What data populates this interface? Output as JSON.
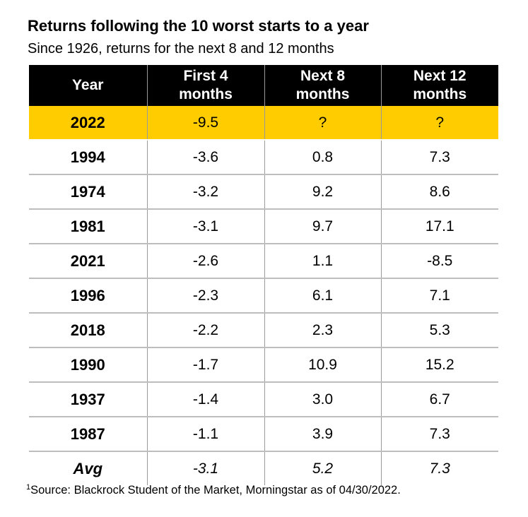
{
  "chart_data": {
    "type": "table",
    "title": "Returns following the 10 worst starts to a year",
    "subtitle": "Since 1926, returns for the next 8 and 12 months",
    "columns": [
      "Year",
      "First 4 months",
      "Next 8 months",
      "Next 12 months"
    ],
    "rows": [
      {
        "year": "2022",
        "first4": "-9.5",
        "next8": "?",
        "next12": "?"
      },
      {
        "year": "1994",
        "first4": "-3.6",
        "next8": "0.8",
        "next12": "7.3"
      },
      {
        "year": "1974",
        "first4": "-3.2",
        "next8": "9.2",
        "next12": "8.6"
      },
      {
        "year": "1981",
        "first4": "-3.1",
        "next8": "9.7",
        "next12": "17.1"
      },
      {
        "year": "2021",
        "first4": "-2.6",
        "next8": "1.1",
        "next12": "-8.5"
      },
      {
        "year": "1996",
        "first4": "-2.3",
        "next8": "6.1",
        "next12": "7.1"
      },
      {
        "year": "2018",
        "first4": "-2.2",
        "next8": "2.3",
        "next12": "5.3"
      },
      {
        "year": "1990",
        "first4": "-1.7",
        "next8": "10.9",
        "next12": "15.2"
      },
      {
        "year": "1937",
        "first4": "-1.4",
        "next8": "3.0",
        "next12": "6.7"
      },
      {
        "year": "1987",
        "first4": "-1.1",
        "next8": "3.9",
        "next12": "7.3"
      }
    ],
    "average": {
      "label": "Avg",
      "first4": "-3.1",
      "next8": "5.2",
      "next12": "7.3"
    },
    "highlight_row": "2022",
    "footnote_marker": "1",
    "footnote": "Source: Blackrock Student of the Market, Morningstar as of 04/30/2022."
  },
  "colors": {
    "header_bg": "#000000",
    "header_text": "#ffffff",
    "highlight": "#ffcc00",
    "row_divider": "#bdbdbd"
  }
}
